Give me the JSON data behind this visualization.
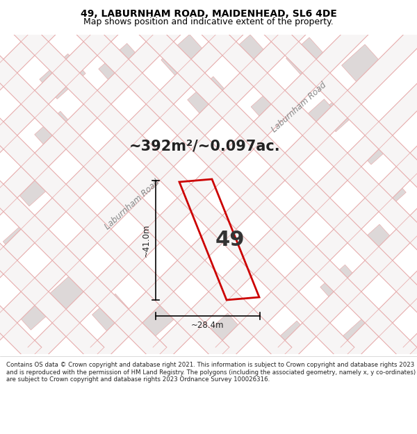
{
  "title_line1": "49, LABURNHAM ROAD, MAIDENHEAD, SL6 4DE",
  "title_line2": "Map shows position and indicative extent of the property.",
  "area_text": "~392m²/~0.097ac.",
  "plot_number": "49",
  "dim_vertical": "~41.0m",
  "dim_horizontal": "~28.4m",
  "road_label_diag": "Laburnham Road",
  "road_label_vert": "Laburnham Road",
  "footer_text": "Contains OS data © Crown copyright and database right 2021. This information is subject to Crown copyright and database rights 2023 and is reproduced with the permission of HM Land Registry. The polygons (including the associated geometry, namely x, y co-ordinates) are subject to Crown copyright and database rights 2023 Ordnance Survey 100026316.",
  "map_bg": "#f7f5f5",
  "plot_color": "#cc0000",
  "road_line_color": "#e8b0b0",
  "road_fill_color": "#ddd8d8",
  "title_bg": "#ffffff",
  "footer_bg": "#ffffff",
  "title_fontsize": 10,
  "subtitle_fontsize": 9,
  "area_fontsize": 15,
  "plot_num_fontsize": 22,
  "footer_fontsize": 6.2
}
